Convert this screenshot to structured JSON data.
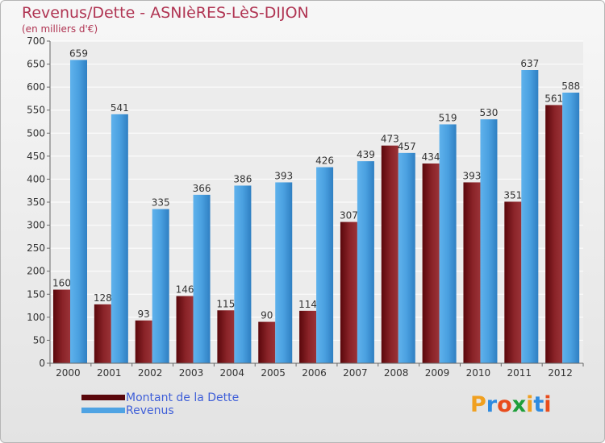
{
  "header": {
    "title": "Revenus/Dette - ASNIèRES-LèS-DIJON",
    "subtitle": "(en milliers d'€)"
  },
  "legend": {
    "items": [
      {
        "label": "Montant de la Dette",
        "color": "#6e0f14"
      },
      {
        "label": "Revenus",
        "color": "#4fa3e3"
      }
    ]
  },
  "logo": {
    "text": "Proxiti",
    "letter_colors": [
      "#f0a020",
      "#2e8be0",
      "#e84c1c",
      "#1e9e3a",
      "#f0a020",
      "#2e8be0",
      "#e84c1c"
    ]
  },
  "colors": {
    "dette": "#6e0f14",
    "revenus": "#4fa3e3",
    "title": "#b03553"
  },
  "chart_data": {
    "type": "bar",
    "title": "Revenus/Dette - ASNIèRES-LèS-DIJON",
    "subtitle": "(en milliers d'€)",
    "categories": [
      "2000",
      "2001",
      "2002",
      "2003",
      "2004",
      "2005",
      "2006",
      "2007",
      "2008",
      "2009",
      "2010",
      "2011",
      "2012"
    ],
    "series": [
      {
        "name": "Montant de la Dette",
        "values": [
          160,
          128,
          93,
          146,
          115,
          90,
          114,
          307,
          473,
          434,
          393,
          351,
          561
        ]
      },
      {
        "name": "Revenus",
        "values": [
          659,
          541,
          335,
          366,
          386,
          393,
          426,
          439,
          457,
          519,
          530,
          637,
          588
        ]
      }
    ],
    "ylim": [
      0,
      700
    ],
    "yticks": [
      0,
      50,
      100,
      150,
      200,
      250,
      300,
      350,
      400,
      450,
      500,
      550,
      600,
      650,
      700
    ],
    "grid": true,
    "legend_position": "bottom-left"
  }
}
